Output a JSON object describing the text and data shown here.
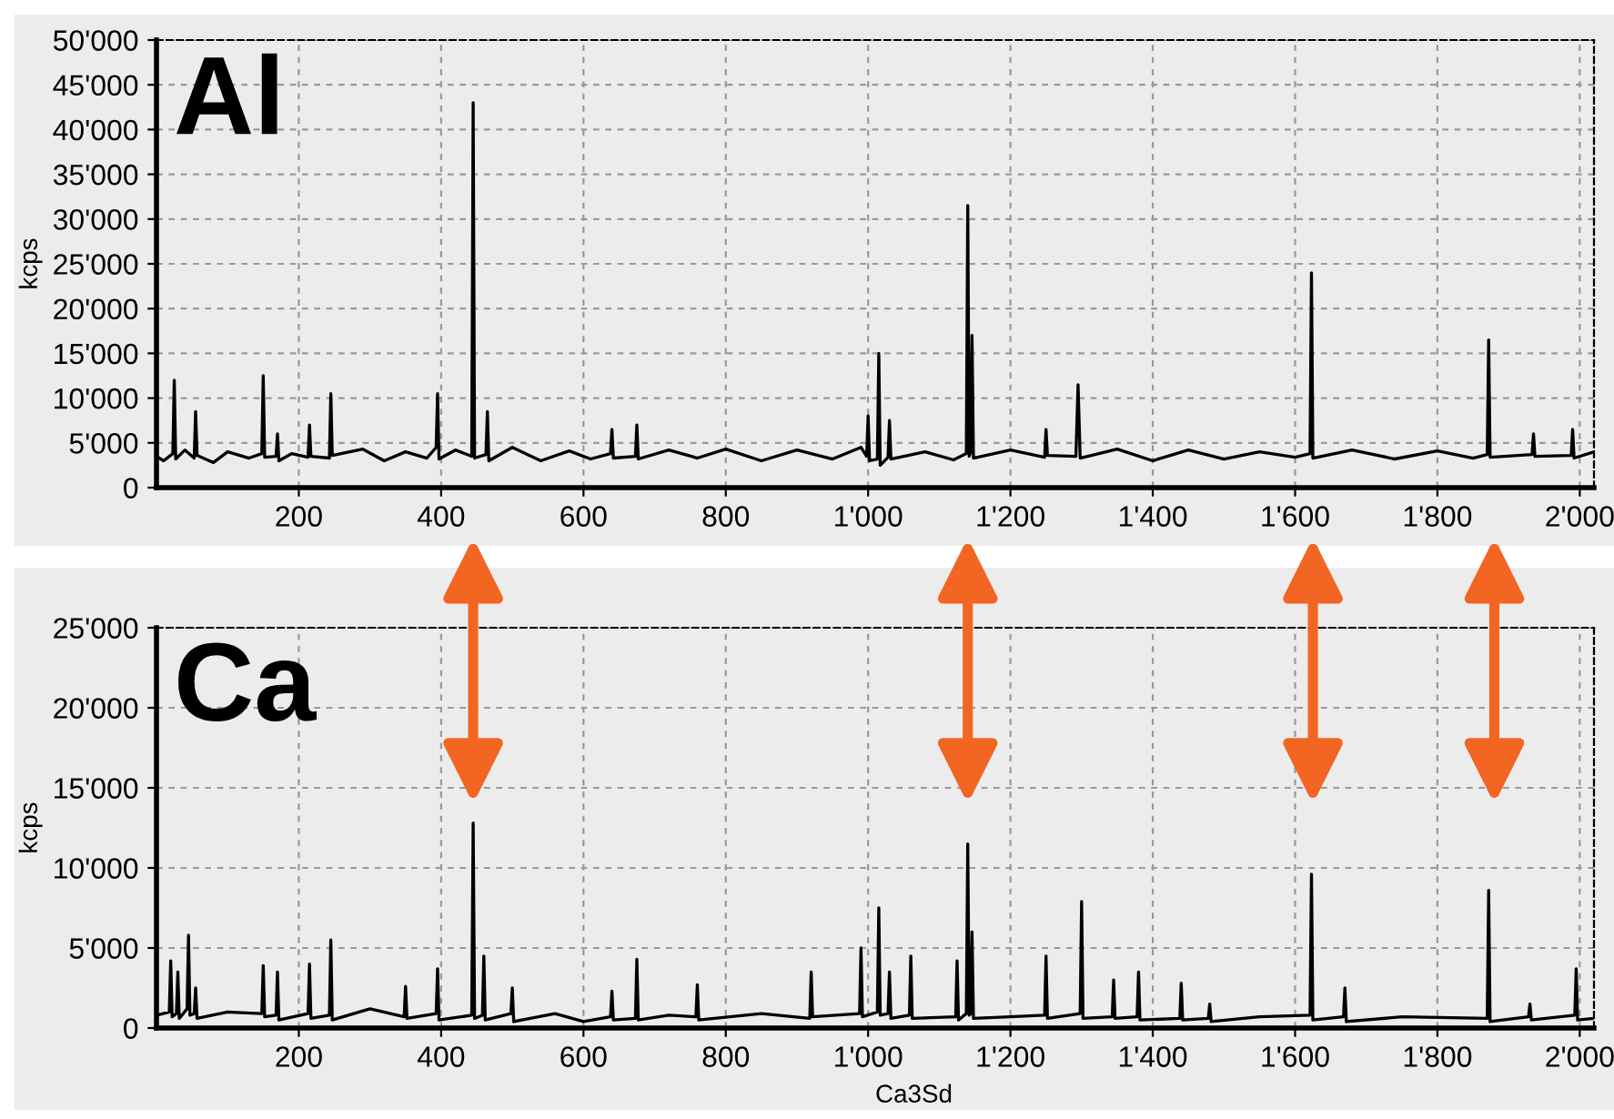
{
  "chart_data": [
    {
      "type": "line",
      "ylabel": "kcps",
      "annotations": [
        "Al"
      ],
      "grid": true,
      "marker": "none",
      "line_style": "solid",
      "xlim": [
        0,
        2020
      ],
      "xticks": [
        200,
        400,
        600,
        800,
        {
          "value": 1000,
          "label": "1'000"
        },
        {
          "value": 1200,
          "label": "1'200"
        },
        {
          "value": 1400,
          "label": "1'400"
        },
        {
          "value": 1600,
          "label": "1'600"
        },
        {
          "value": 1800,
          "label": "1'800"
        },
        {
          "value": 2000,
          "label": "2'000"
        }
      ],
      "ylim": [
        0,
        50000
      ],
      "yticks": [
        0,
        {
          "value": 5000,
          "label": "5'000"
        },
        {
          "value": 10000,
          "label": "10'000"
        },
        {
          "value": 15000,
          "label": "15'000"
        },
        {
          "value": 20000,
          "label": "20'000"
        },
        {
          "value": 25000,
          "label": "25'000"
        },
        {
          "value": 30000,
          "label": "30'000"
        },
        {
          "value": 35000,
          "label": "35'000"
        },
        {
          "value": 40000,
          "label": "40'000"
        },
        {
          "value": 45000,
          "label": "45'000"
        },
        {
          "value": 50000,
          "label": "50'000"
        }
      ],
      "series": [
        {
          "color": "#000000",
          "x": [
            0,
            10,
            23,
            25,
            27,
            40,
            53,
            55,
            57,
            80,
            100,
            130,
            148,
            150,
            152,
            168,
            170,
            172,
            190,
            213,
            215,
            217,
            243,
            245,
            247,
            290,
            320,
            350,
            380,
            393,
            395,
            397,
            420,
            443,
            445,
            447,
            463,
            465,
            467,
            500,
            540,
            580,
            610,
            638,
            640,
            642,
            673,
            675,
            677,
            720,
            760,
            800,
            850,
            900,
            950,
            990,
            998,
            1000,
            1002,
            1013,
            1015,
            1017,
            1028,
            1030,
            1032,
            1080,
            1120,
            1138,
            1140,
            1142,
            1144,
            1146,
            1148,
            1200,
            1248,
            1250,
            1252,
            1292,
            1295,
            1298,
            1350,
            1400,
            1450,
            1500,
            1550,
            1600,
            1621,
            1623,
            1625,
            1680,
            1740,
            1800,
            1850,
            1870,
            1872,
            1874,
            1933,
            1935,
            1937,
            1988,
            1990,
            1992,
            2020
          ],
          "values": [
            3500,
            3000,
            3800,
            12000,
            3200,
            4200,
            3300,
            8500,
            3600,
            2800,
            4000,
            3300,
            3800,
            12500,
            3400,
            3500,
            6000,
            3000,
            3800,
            3400,
            7000,
            3500,
            3300,
            10500,
            3600,
            4300,
            3000,
            4000,
            3300,
            4500,
            10500,
            3200,
            4200,
            3500,
            43000,
            3300,
            3700,
            8500,
            3000,
            4500,
            3000,
            4100,
            3200,
            3800,
            6500,
            3300,
            3500,
            7000,
            3200,
            4200,
            3300,
            4300,
            3000,
            4200,
            3200,
            4500,
            3500,
            8000,
            3000,
            3200,
            15000,
            2500,
            3400,
            7500,
            3200,
            4000,
            3100,
            3800,
            31500,
            3500,
            4000,
            17000,
            3300,
            4200,
            3400,
            6500,
            3600,
            3500,
            11500,
            3300,
            4300,
            3000,
            4200,
            3200,
            4000,
            3400,
            3800,
            24000,
            3300,
            4200,
            3200,
            4100,
            3300,
            3700,
            16500,
            3400,
            3700,
            6000,
            3500,
            3600,
            6500,
            3300,
            4000
          ]
        }
      ]
    },
    {
      "type": "line",
      "xlabel": "Ca3Sd",
      "ylabel": "kcps",
      "annotations": [
        "Ca"
      ],
      "grid": true,
      "marker": "none",
      "line_style": "solid",
      "xlim": [
        0,
        2020
      ],
      "xticks": [
        200,
        400,
        600,
        800,
        {
          "value": 1000,
          "label": "1'000"
        },
        {
          "value": 1200,
          "label": "1'200"
        },
        {
          "value": 1400,
          "label": "1'400"
        },
        {
          "value": 1600,
          "label": "1'600"
        },
        {
          "value": 1800,
          "label": "1'800"
        },
        {
          "value": 2000,
          "label": "2'000"
        }
      ],
      "ylim": [
        0,
        25000
      ],
      "yticks": [
        0,
        {
          "value": 5000,
          "label": "5'000"
        },
        {
          "value": 10000,
          "label": "10'000"
        },
        {
          "value": 15000,
          "label": "15'000"
        },
        {
          "value": 20000,
          "label": "20'000"
        },
        {
          "value": 25000,
          "label": "25'000"
        }
      ],
      "series": [
        {
          "color": "#000000",
          "x": [
            0,
            18,
            20,
            22,
            28,
            30,
            32,
            43,
            45,
            47,
            53,
            55,
            57,
            100,
            148,
            150,
            152,
            168,
            170,
            172,
            213,
            215,
            217,
            243,
            245,
            247,
            300,
            348,
            350,
            352,
            393,
            395,
            397,
            443,
            445,
            447,
            458,
            460,
            462,
            498,
            500,
            502,
            560,
            600,
            638,
            640,
            642,
            673,
            675,
            677,
            720,
            758,
            760,
            762,
            850,
            918,
            920,
            922,
            988,
            990,
            992,
            1013,
            1015,
            1017,
            1028,
            1030,
            1032,
            1058,
            1060,
            1062,
            1123,
            1125,
            1127,
            1138,
            1140,
            1142,
            1144,
            1146,
            1148,
            1200,
            1248,
            1250,
            1252,
            1298,
            1300,
            1302,
            1343,
            1345,
            1347,
            1378,
            1380,
            1382,
            1438,
            1440,
            1442,
            1478,
            1480,
            1482,
            1550,
            1621,
            1623,
            1625,
            1668,
            1670,
            1672,
            1750,
            1870,
            1872,
            1874,
            1928,
            1930,
            1932,
            1993,
            1995,
            1997,
            2020
          ],
          "values": [
            800,
            1000,
            4200,
            700,
            900,
            3500,
            600,
            1200,
            5800,
            800,
            900,
            2500,
            600,
            1000,
            900,
            3900,
            700,
            800,
            3500,
            500,
            900,
            4000,
            600,
            800,
            5500,
            500,
            1200,
            700,
            2600,
            600,
            900,
            3700,
            500,
            800,
            12800,
            600,
            800,
            4500,
            500,
            900,
            2500,
            400,
            900,
            400,
            700,
            2300,
            500,
            600,
            4300,
            500,
            800,
            700,
            2700,
            500,
            900,
            600,
            3500,
            700,
            900,
            5000,
            700,
            1000,
            7500,
            800,
            900,
            3500,
            600,
            800,
            4500,
            600,
            700,
            4200,
            500,
            900,
            11500,
            800,
            900,
            6000,
            600,
            700,
            800,
            4500,
            600,
            900,
            7900,
            600,
            700,
            3000,
            600,
            700,
            3500,
            500,
            600,
            2800,
            500,
            600,
            1500,
            400,
            700,
            800,
            9600,
            500,
            700,
            2500,
            400,
            700,
            600,
            8600,
            400,
            700,
            1500,
            500,
            800,
            3700,
            500,
            600
          ]
        }
      ]
    }
  ]
}
